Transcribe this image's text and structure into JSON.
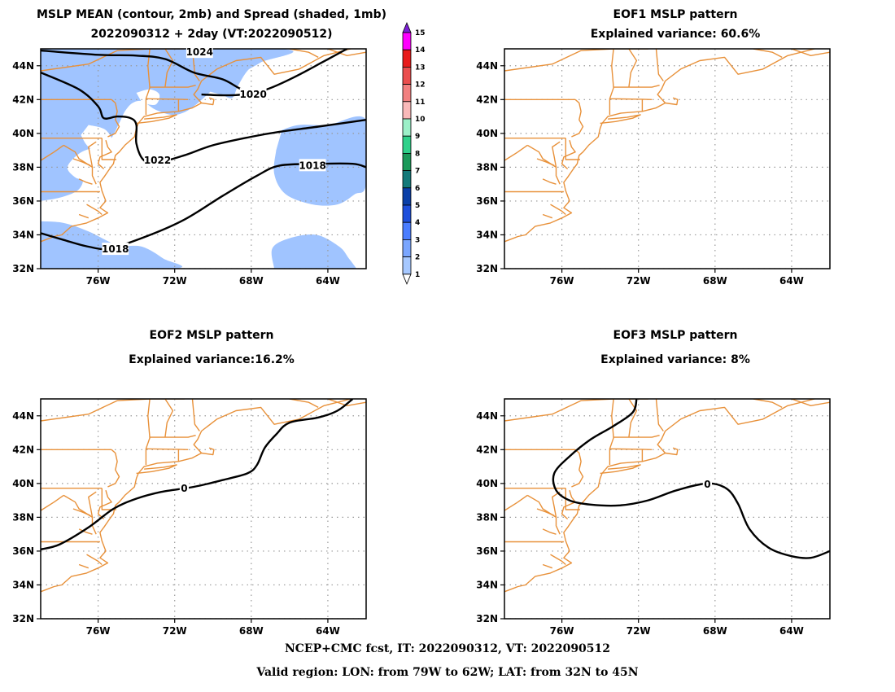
{
  "panels": [
    {
      "id": "p1",
      "title1": "MSLP MEAN (contour, 2mb) and Spread (shaded, 1mb)",
      "title2": "2022090312 + 2day (VT:2022090512)",
      "contour_labels": [
        "1024",
        "1022",
        "1020",
        "1018",
        "1018"
      ]
    },
    {
      "id": "p2",
      "title1": "EOF1 MSLP pattern",
      "title2": "Explained variance: 60.6%",
      "contour_labels": []
    },
    {
      "id": "p3",
      "title1": "EOF2 MSLP pattern",
      "title2": "Explained variance:16.2%",
      "contour_labels": [
        "0"
      ]
    },
    {
      "id": "p4",
      "title1": "EOF3 MSLP pattern",
      "title2": "Explained variance: 8%",
      "contour_labels": [
        "0"
      ]
    }
  ],
  "axes": {
    "lon_range": [
      -79,
      -62
    ],
    "lat_range": [
      32,
      45
    ],
    "xticks": [
      -76,
      -72,
      -68,
      -64
    ],
    "xtick_labels": [
      "76W",
      "72W",
      "68W",
      "64W"
    ],
    "yticks": [
      32,
      34,
      36,
      38,
      40,
      42,
      44
    ],
    "ytick_labels": [
      "32N",
      "34N",
      "36N",
      "38N",
      "40N",
      "42N",
      "44N"
    ],
    "grid": "dotted"
  },
  "colorbar": {
    "labels": [
      "1",
      "2",
      "3",
      "4",
      "5",
      "6",
      "7",
      "8",
      "9",
      "10",
      "11",
      "12",
      "13",
      "14",
      "15"
    ],
    "colors": [
      "#ffffff",
      "#a6c8ff",
      "#7aa6ff",
      "#4a7dff",
      "#1e4fdc",
      "#0a3fa8",
      "#137a7a",
      "#1a9a5a",
      "#2fd18a",
      "#9cf0c8",
      "#f9b9b9",
      "#f28080",
      "#ea4e4e",
      "#e81a1a",
      "#ff00ff",
      "#7b1fd6"
    ]
  },
  "colors": {
    "coast": "#e8913a",
    "contour": "#000000",
    "spread": "#a0c4ff",
    "grid": "#999999"
  },
  "footer": {
    "line1": "NCEP+CMC fcst, IT: 2022090312, VT: 2022090512",
    "line2": "Valid region: LON: from 79W to 62W; LAT: from 32N to 45N"
  }
}
